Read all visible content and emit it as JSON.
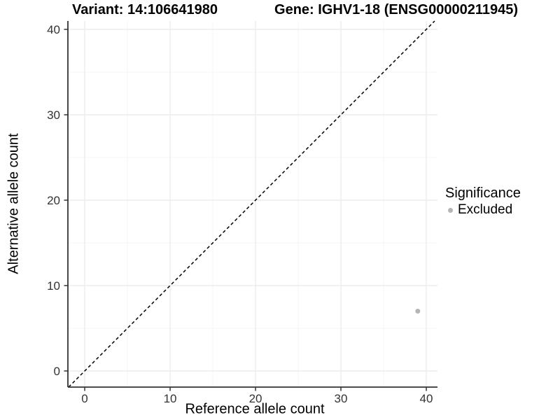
{
  "chart_data": {
    "type": "scatter",
    "title_left": "Variant: 14:106641980",
    "title_right": "Gene: IGHV1-18 (ENSG00000211945)",
    "xlabel": "Reference allele count",
    "ylabel": "Alternative allele count",
    "xlim": [
      -1.97,
      41.31
    ],
    "ylim": [
      -1.89,
      40.98
    ],
    "xticks": [
      0,
      10,
      20,
      30,
      40
    ],
    "yticks": [
      0,
      10,
      20,
      30,
      40
    ],
    "xticks_minor": [
      5,
      15,
      25,
      35
    ],
    "yticks_minor": [
      5,
      15,
      25,
      35
    ],
    "grid": "major+minor",
    "reference_line": {
      "kind": "y=x",
      "style": "dashed",
      "color": "#000000"
    },
    "series": [
      {
        "name": "Excluded",
        "color": "#b5b5b5",
        "marker": "circle",
        "points": [
          {
            "x": 39,
            "y": 7
          }
        ]
      }
    ],
    "legend": {
      "title": "Significance",
      "position": "right",
      "entries": [
        {
          "label": "Excluded",
          "color": "#b5b5b5",
          "marker": "circle"
        }
      ]
    },
    "style": {
      "background": "#ffffff",
      "grid_major_color": "#ebebeb",
      "grid_minor_color": "#f5f5f5",
      "axis_line_color": "#333333",
      "tick_color": "#333333",
      "tick_label_color": "#333333",
      "point_color": "#b5b5b5"
    }
  }
}
